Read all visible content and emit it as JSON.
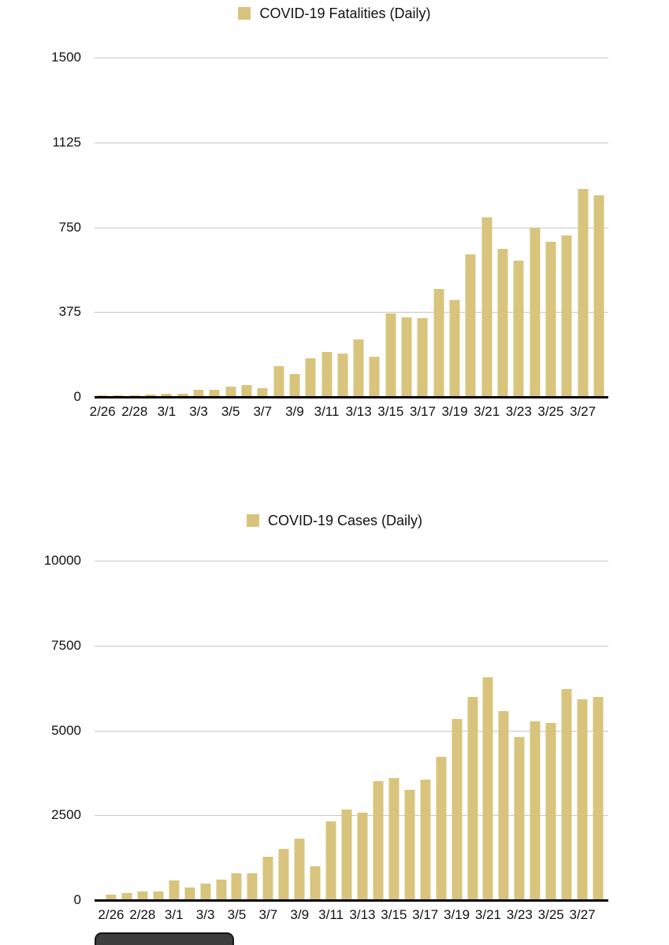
{
  "colors": {
    "bar": "#d8c47c",
    "grid": "#c6c6c6",
    "axis_line": "#000000",
    "label_text": "#111111",
    "button_bg": "#3d3d3d",
    "page_bg": "#ffffff"
  },
  "chart_data": [
    {
      "type": "bar",
      "title": "COVID-19 Fatalities (Daily)",
      "legend": [
        "COVID-19 Fatalities (Daily)"
      ],
      "legend_position": "top-center",
      "grid": true,
      "xlabel": "",
      "ylabel": "",
      "ylim": [
        0,
        1500
      ],
      "y_ticks": [
        "1500",
        "1125",
        "750",
        "375",
        "0"
      ],
      "x": [
        "2/26",
        "2/27",
        "2/28",
        "2/29",
        "3/1",
        "3/2",
        "3/3",
        "3/4",
        "3/5",
        "3/6",
        "3/7",
        "3/8",
        "3/9",
        "3/10",
        "3/11",
        "3/12",
        "3/13",
        "3/14",
        "3/15",
        "3/16",
        "3/17",
        "3/18",
        "3/19",
        "3/20",
        "3/21",
        "3/22",
        "3/23",
        "3/24",
        "3/25",
        "3/26",
        "3/27",
        "3/28"
      ],
      "x_tick_labels": [
        "2/26",
        "2/28",
        "3/1",
        "3/3",
        "3/5",
        "3/7",
        "3/9",
        "3/11",
        "3/13",
        "3/15",
        "3/17",
        "3/19",
        "3/21",
        "3/23",
        "3/25",
        "3/27"
      ],
      "values": [
        2,
        5,
        4,
        8,
        12,
        11,
        27,
        28,
        41,
        49,
        36,
        133,
        97,
        168,
        196,
        189,
        250,
        175,
        368,
        349,
        345,
        475,
        427,
        627,
        793,
        651,
        601,
        743,
        683,
        712,
        919,
        889
      ]
    },
    {
      "type": "bar",
      "title": "COVID-19 Cases (Daily)",
      "legend": [
        "COVID-19 Cases (Daily)"
      ],
      "legend_position": "top-center",
      "grid": true,
      "xlabel": "",
      "ylabel": "",
      "ylim": [
        0,
        10000
      ],
      "y_ticks": [
        "10000",
        "7500",
        "5000",
        "2500",
        "0"
      ],
      "x": [
        "2/26",
        "2/27",
        "2/28",
        "2/29",
        "3/1",
        "3/2",
        "3/3",
        "3/4",
        "3/5",
        "3/6",
        "3/7",
        "3/8",
        "3/9",
        "3/10",
        "3/11",
        "3/12",
        "3/13",
        "3/14",
        "3/15",
        "3/16",
        "3/17",
        "3/18",
        "3/19",
        "3/20",
        "3/21",
        "3/22",
        "3/23",
        "3/24",
        "3/25",
        "3/26",
        "3/27",
        "3/28"
      ],
      "x_tick_labels": [
        "2/26",
        "2/28",
        "3/1",
        "3/3",
        "3/5",
        "3/7",
        "3/9",
        "3/11",
        "3/13",
        "3/15",
        "3/17",
        "3/19",
        "3/21",
        "3/23",
        "3/25",
        "3/27"
      ],
      "values": [
        148,
        185,
        233,
        240,
        566,
        342,
        466,
        587,
        769,
        778,
        1247,
        1492,
        1797,
        977,
        2313,
        2651,
        2547,
        3497,
        3590,
        3233,
        3526,
        4207,
        5322,
        5986,
        6557,
        5560,
        4789,
        5249,
        5210,
        6203,
        5909,
        5974
      ]
    }
  ],
  "footer_button": {
    "label": ""
  }
}
